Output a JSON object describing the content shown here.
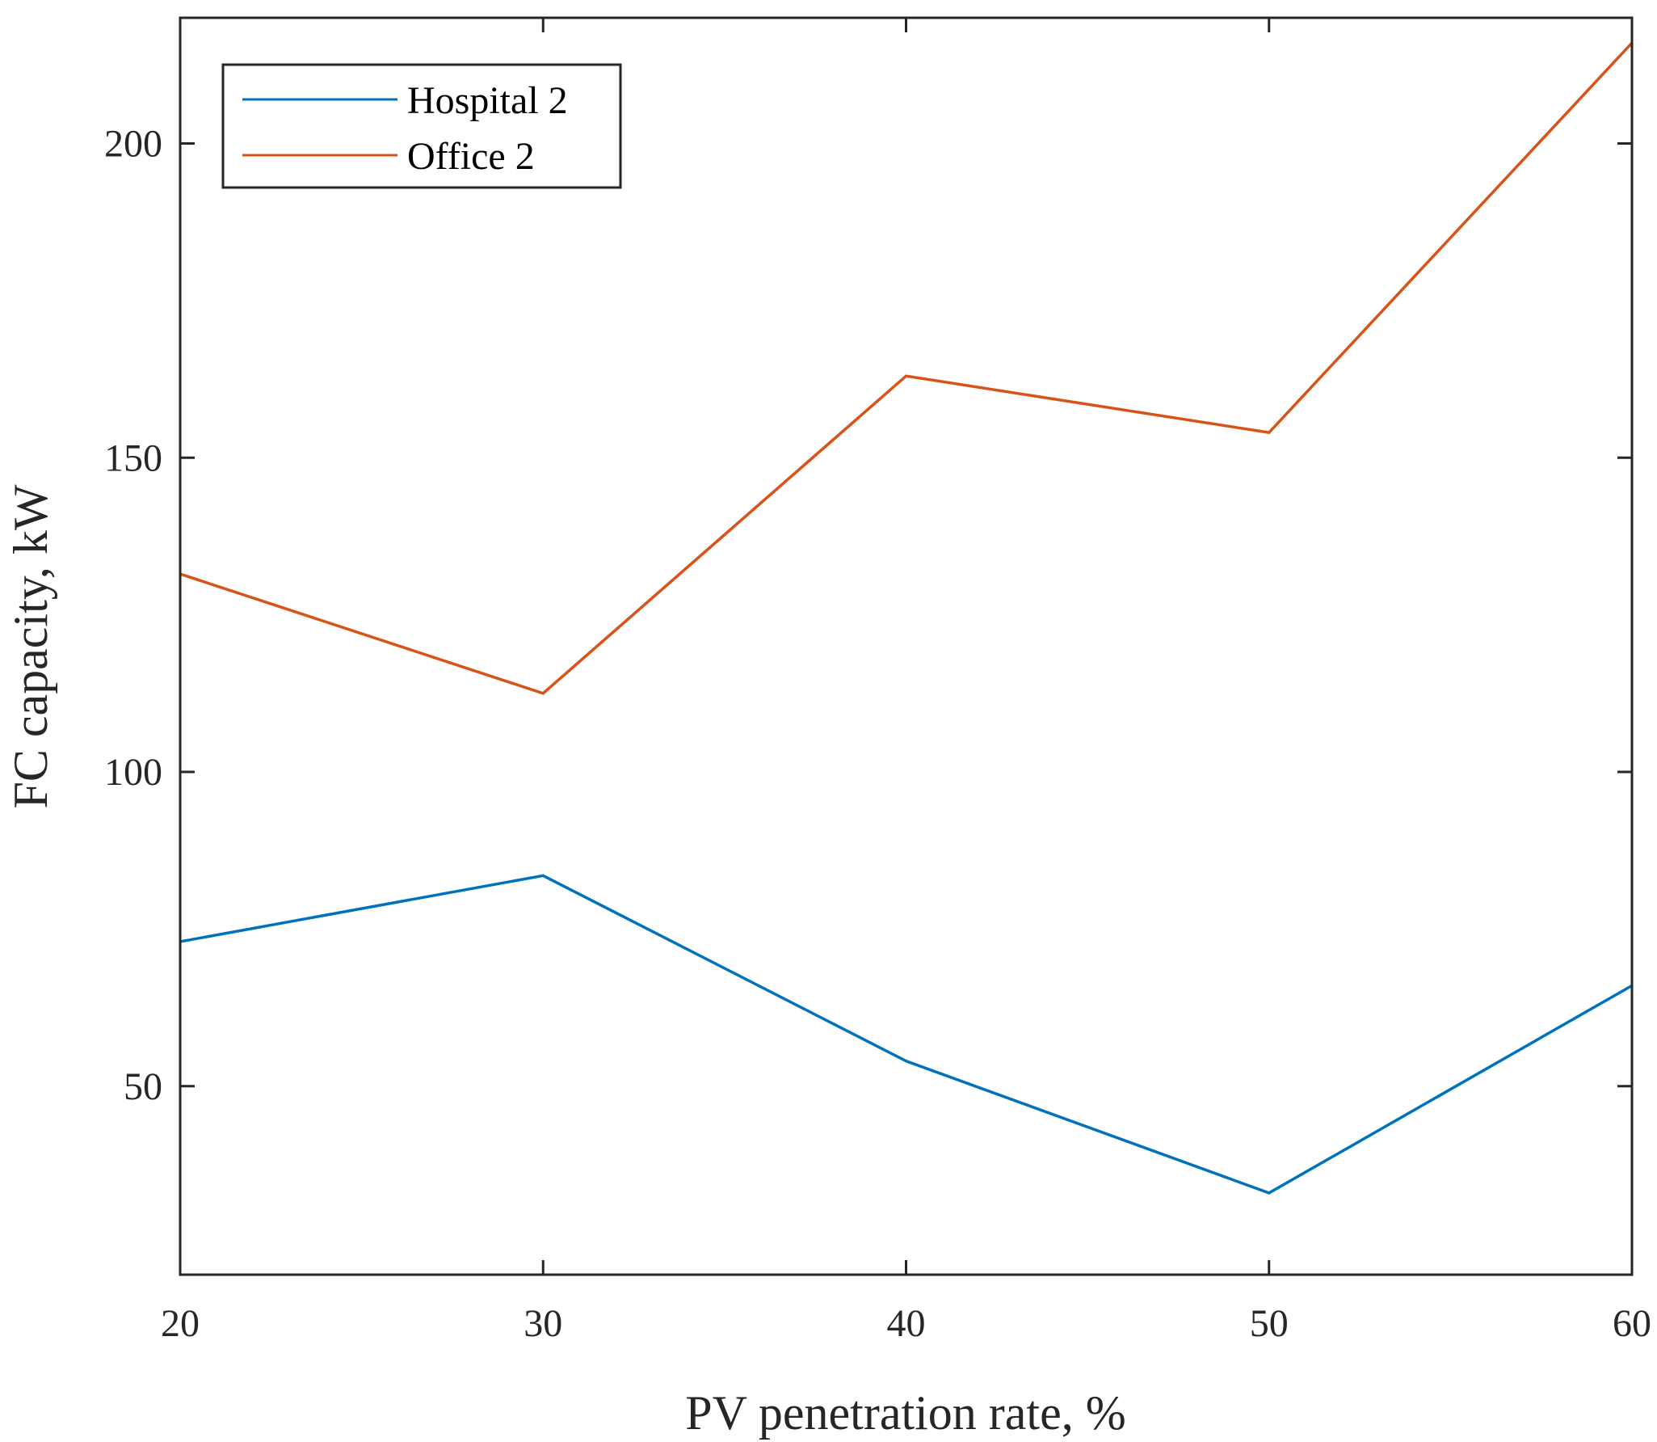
{
  "chart_data": {
    "type": "line",
    "title": "",
    "xlabel": "PV penetration rate, %",
    "ylabel": "FC capacity, kW",
    "xlim": [
      20,
      60
    ],
    "ylim": [
      20,
      220
    ],
    "xticks": [
      20,
      30,
      40,
      50,
      60
    ],
    "yticks": [
      50,
      100,
      150,
      200
    ],
    "grid": false,
    "legend_position": "top-left",
    "x": [
      20,
      30,
      40,
      50,
      60
    ],
    "series": [
      {
        "name": "Hospital 2",
        "color": "#0072BD",
        "values": [
          73,
          83.5,
          54,
          33,
          66
        ]
      },
      {
        "name": "Office 2",
        "color": "#D95319",
        "values": [
          131.5,
          112.5,
          163,
          154,
          216
        ]
      }
    ]
  }
}
